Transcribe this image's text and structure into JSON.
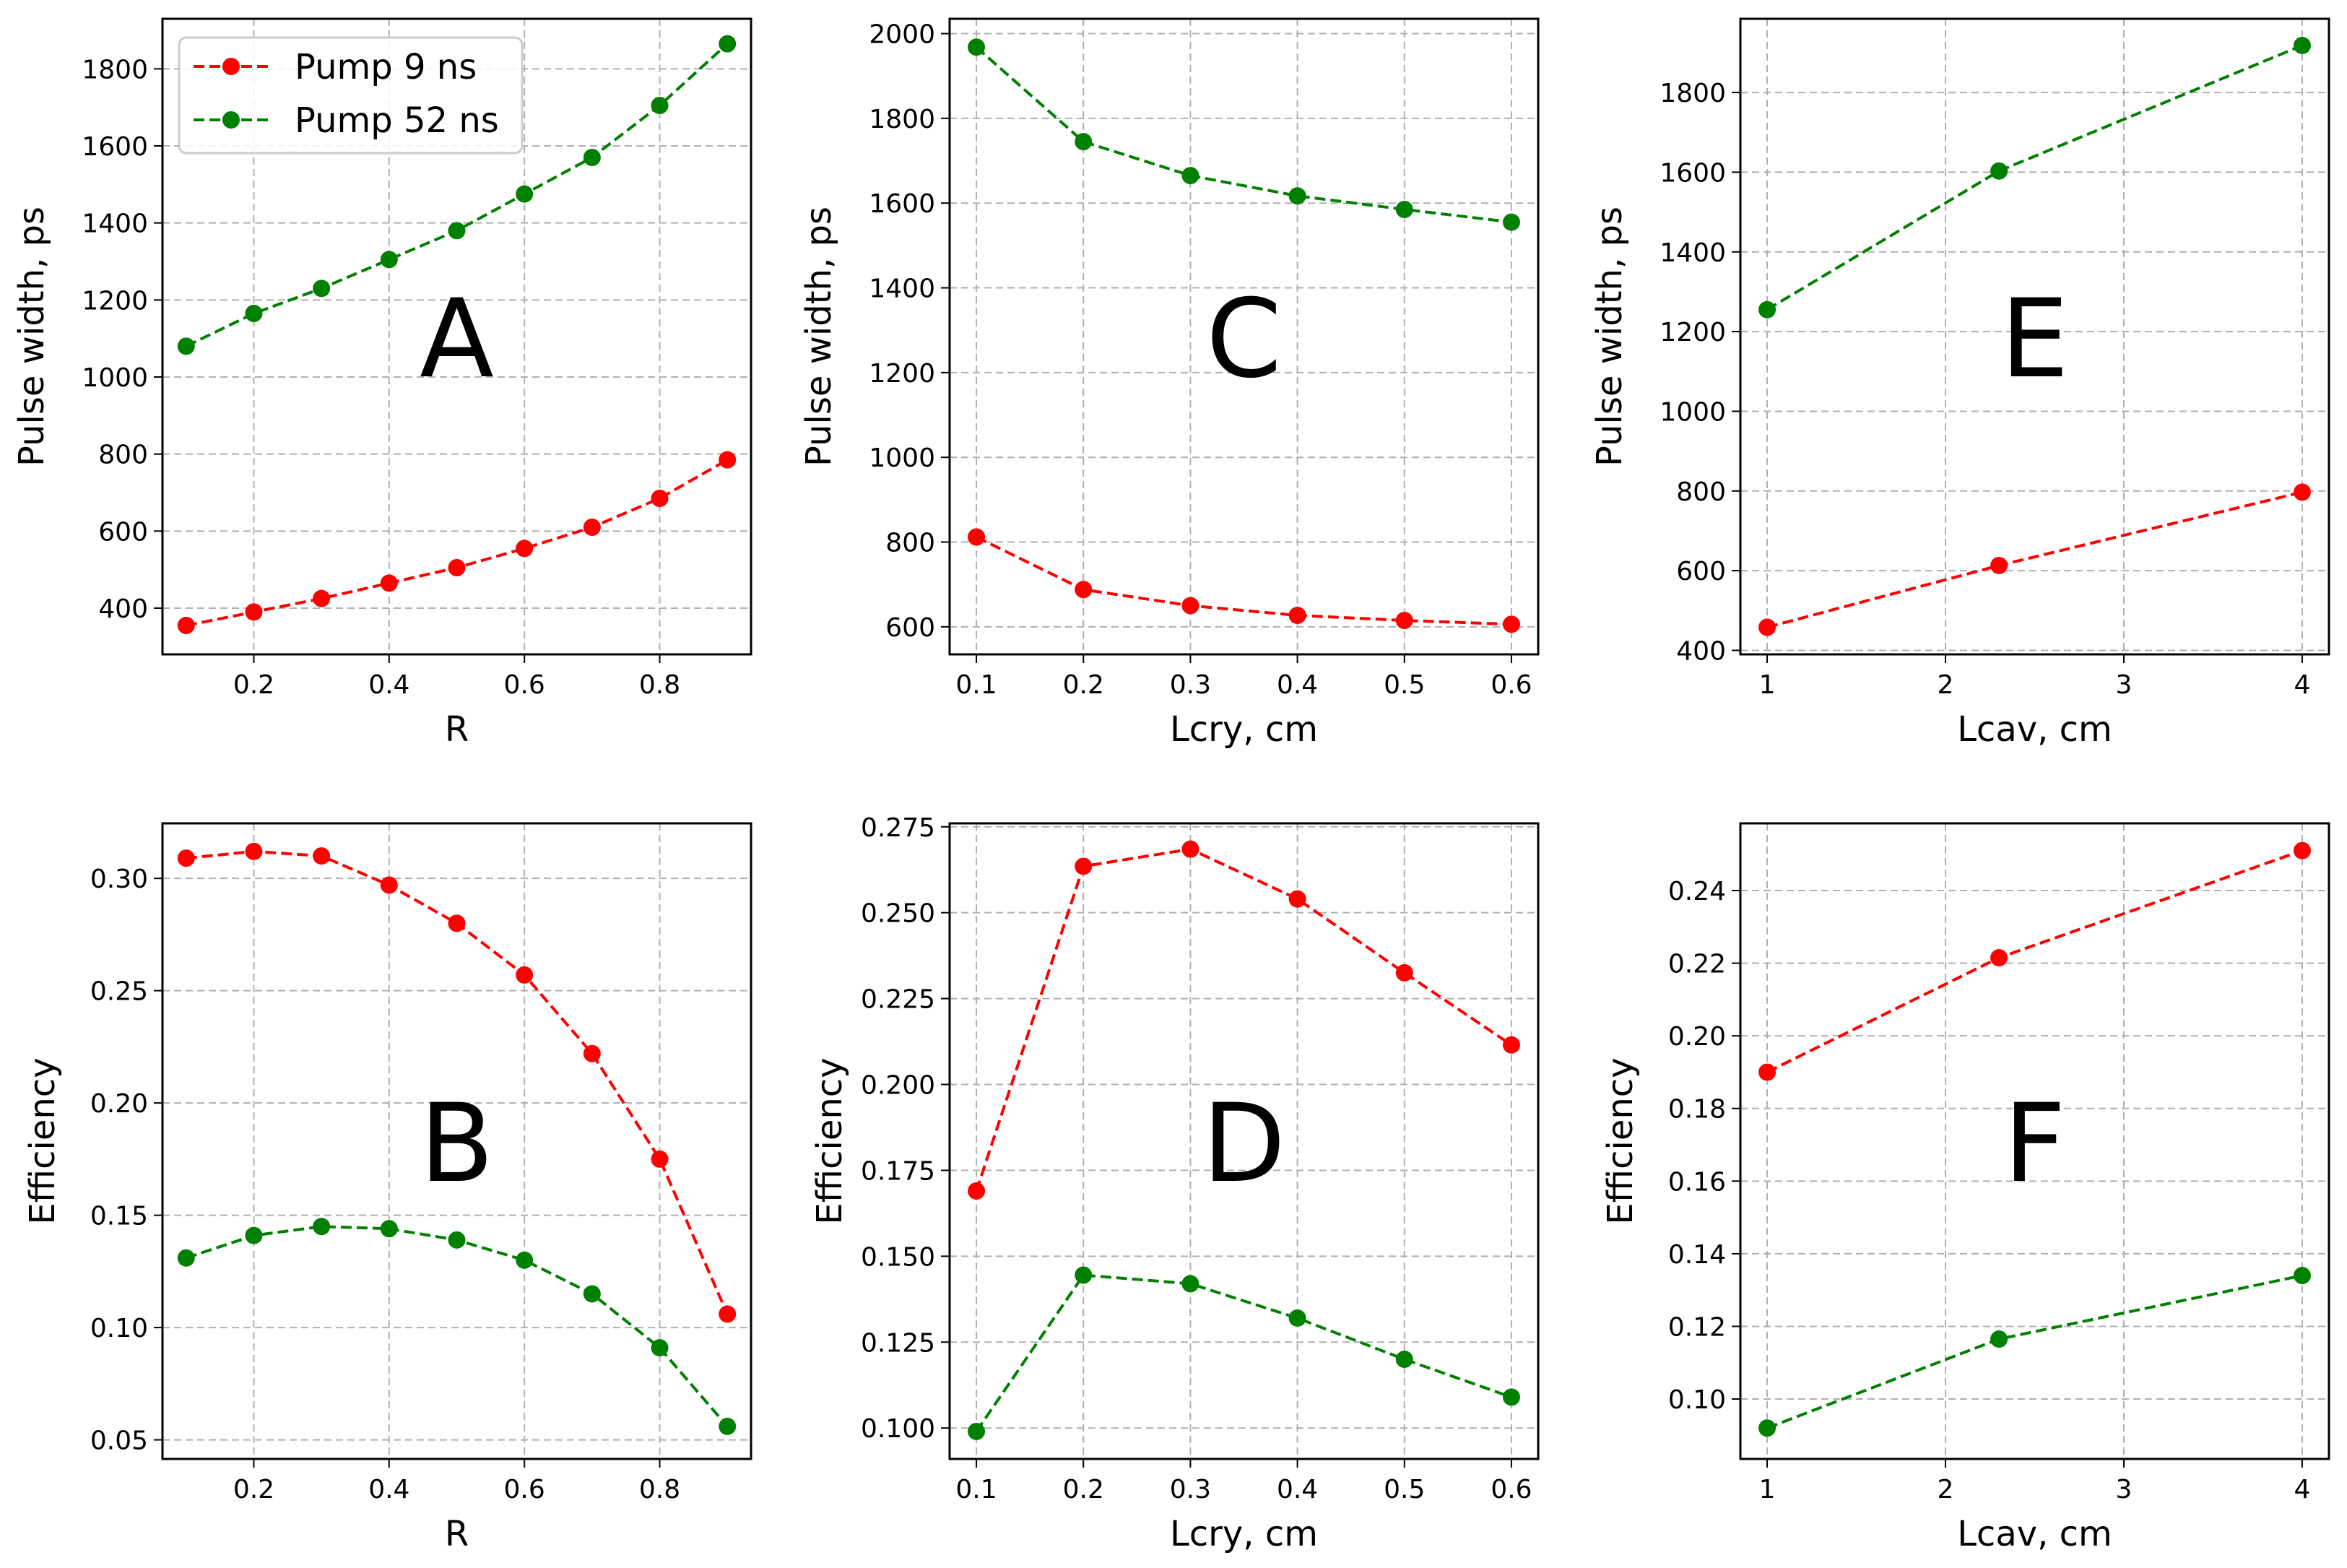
{
  "figure": {
    "legend": [
      {
        "name": "Pump 9 ns",
        "color": "#ff0000"
      },
      {
        "name": "Pump 52 ns",
        "color": "#008000"
      }
    ]
  },
  "chart_data": [
    {
      "id": "A",
      "type": "line",
      "panel_label": "A",
      "xlabel": "R",
      "ylabel": "Pulse width, ps",
      "xlim": [
        0.065,
        0.935
      ],
      "ylim": [
        280,
        1930
      ],
      "xticks": [
        0.2,
        0.4,
        0.6,
        0.8
      ],
      "xtick_labels": [
        "0.2",
        "0.4",
        "0.6",
        "0.8"
      ],
      "yticks": [
        400,
        600,
        800,
        1000,
        1200,
        1400,
        1600,
        1800
      ],
      "ytick_labels": [
        "400",
        "600",
        "800",
        "1000",
        "1200",
        "1400",
        "1600",
        "1800"
      ],
      "grid": true,
      "legend": "top-left",
      "x": [
        0.1,
        0.2,
        0.3,
        0.4,
        0.5,
        0.6,
        0.7,
        0.8,
        0.9
      ],
      "series": [
        {
          "name": "Pump 9 ns",
          "color": "#ff0000",
          "values": [
            355,
            390,
            425,
            465,
            505,
            555,
            610,
            685,
            785
          ]
        },
        {
          "name": "Pump 52 ns",
          "color": "#008000",
          "values": [
            1080,
            1165,
            1230,
            1305,
            1380,
            1475,
            1570,
            1705,
            1865
          ]
        }
      ]
    },
    {
      "id": "C",
      "type": "line",
      "panel_label": "C",
      "xlabel": "Lcry, cm",
      "ylabel": "Pulse width, ps",
      "xlim": [
        0.075,
        0.625
      ],
      "ylim": [
        535,
        2035
      ],
      "xticks": [
        0.1,
        0.2,
        0.3,
        0.4,
        0.5,
        0.6
      ],
      "xtick_labels": [
        "0.1",
        "0.2",
        "0.3",
        "0.4",
        "0.5",
        "0.6"
      ],
      "yticks": [
        600,
        800,
        1000,
        1200,
        1400,
        1600,
        1800,
        2000
      ],
      "ytick_labels": [
        "600",
        "800",
        "1000",
        "1200",
        "1400",
        "1600",
        "1800",
        "2000"
      ],
      "grid": true,
      "x": [
        0.1,
        0.2,
        0.3,
        0.4,
        0.5,
        0.6
      ],
      "series": [
        {
          "name": "Pump 9 ns",
          "color": "#ff0000",
          "values": [
            812,
            688,
            650,
            627,
            615,
            606
          ]
        },
        {
          "name": "Pump 52 ns",
          "color": "#008000",
          "values": [
            1968,
            1745,
            1665,
            1617,
            1585,
            1555
          ]
        }
      ]
    },
    {
      "id": "E",
      "type": "line",
      "panel_label": "E",
      "xlabel": "Lcav, cm",
      "ylabel": "Pulse width, ps",
      "xlim": [
        0.85,
        4.15
      ],
      "ylim": [
        390,
        1985
      ],
      "xticks": [
        1,
        2,
        3,
        4
      ],
      "xtick_labels": [
        "1",
        "2",
        "3",
        "4"
      ],
      "yticks": [
        400,
        600,
        800,
        1000,
        1200,
        1400,
        1600,
        1800
      ],
      "ytick_labels": [
        "400",
        "600",
        "800",
        "1000",
        "1200",
        "1400",
        "1600",
        "1800"
      ],
      "grid": true,
      "x": [
        1,
        2.3,
        4
      ],
      "series": [
        {
          "name": "Pump 9 ns",
          "color": "#ff0000",
          "values": [
            458,
            613,
            797
          ]
        },
        {
          "name": "Pump 52 ns",
          "color": "#008000",
          "values": [
            1255,
            1603,
            1918
          ]
        }
      ]
    },
    {
      "id": "B",
      "type": "line",
      "panel_label": "B",
      "xlabel": "R",
      "ylabel": "Efficiency",
      "xlim": [
        0.065,
        0.935
      ],
      "ylim": [
        0.0415,
        0.3245
      ],
      "xticks": [
        0.2,
        0.4,
        0.6,
        0.8
      ],
      "xtick_labels": [
        "0.2",
        "0.4",
        "0.6",
        "0.8"
      ],
      "yticks": [
        0.05,
        0.1,
        0.15,
        0.2,
        0.25,
        0.3
      ],
      "ytick_labels": [
        "0.05",
        "0.10",
        "0.15",
        "0.20",
        "0.25",
        "0.30"
      ],
      "grid": true,
      "x": [
        0.1,
        0.2,
        0.3,
        0.4,
        0.5,
        0.6,
        0.7,
        0.8,
        0.9
      ],
      "series": [
        {
          "name": "Pump 9 ns",
          "color": "#ff0000",
          "values": [
            0.309,
            0.312,
            0.31,
            0.297,
            0.28,
            0.257,
            0.222,
            0.175,
            0.106
          ]
        },
        {
          "name": "Pump 52 ns",
          "color": "#008000",
          "values": [
            0.131,
            0.141,
            0.145,
            0.144,
            0.139,
            0.13,
            0.115,
            0.091,
            0.056
          ]
        }
      ]
    },
    {
      "id": "D",
      "type": "line",
      "panel_label": "D",
      "xlabel": "Lcry, cm",
      "ylabel": "Efficiency",
      "xlim": [
        0.075,
        0.625
      ],
      "ylim": [
        0.091,
        0.276
      ],
      "xticks": [
        0.1,
        0.2,
        0.3,
        0.4,
        0.5,
        0.6
      ],
      "xtick_labels": [
        "0.1",
        "0.2",
        "0.3",
        "0.4",
        "0.5",
        "0.6"
      ],
      "yticks": [
        0.1,
        0.125,
        0.15,
        0.175,
        0.2,
        0.225,
        0.25,
        0.275
      ],
      "ytick_labels": [
        "0.100",
        "0.125",
        "0.150",
        "0.175",
        "0.200",
        "0.225",
        "0.250",
        "0.275"
      ],
      "grid": true,
      "x": [
        0.1,
        0.2,
        0.3,
        0.4,
        0.5,
        0.6
      ],
      "series": [
        {
          "name": "Pump 9 ns",
          "color": "#ff0000",
          "values": [
            0.169,
            0.2635,
            0.2685,
            0.254,
            0.2325,
            0.2115
          ]
        },
        {
          "name": "Pump 52 ns",
          "color": "#008000",
          "values": [
            0.099,
            0.1445,
            0.142,
            0.132,
            0.12,
            0.109
          ]
        }
      ]
    },
    {
      "id": "F",
      "type": "line",
      "panel_label": "F",
      "xlabel": "Lcav, cm",
      "ylabel": "Efficiency",
      "xlim": [
        0.85,
        4.15
      ],
      "ylim": [
        0.0835,
        0.2585
      ],
      "xticks": [
        1,
        2,
        3,
        4
      ],
      "xtick_labels": [
        "1",
        "2",
        "3",
        "4"
      ],
      "yticks": [
        0.1,
        0.12,
        0.14,
        0.16,
        0.18,
        0.2,
        0.22,
        0.24
      ],
      "ytick_labels": [
        "0.10",
        "0.12",
        "0.14",
        "0.16",
        "0.18",
        "0.20",
        "0.22",
        "0.24"
      ],
      "grid": true,
      "x": [
        1,
        2.3,
        4
      ],
      "series": [
        {
          "name": "Pump 9 ns",
          "color": "#ff0000",
          "values": [
            0.19,
            0.2215,
            0.251
          ]
        },
        {
          "name": "Pump 52 ns",
          "color": "#008000",
          "values": [
            0.092,
            0.1165,
            0.134
          ]
        }
      ]
    }
  ]
}
